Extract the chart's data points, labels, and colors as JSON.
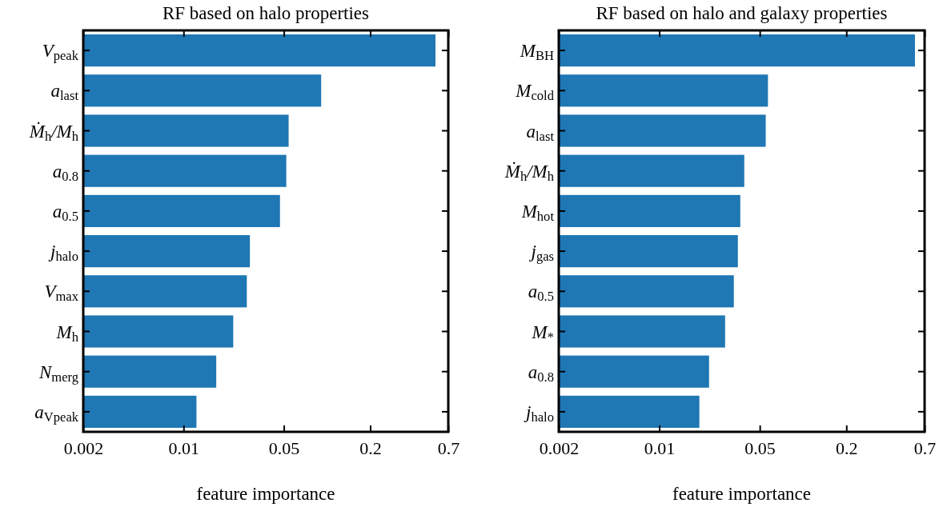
{
  "chart_data": [
    {
      "type": "bar",
      "orientation": "horizontal",
      "title": "RF based on halo properties",
      "xlabel": "feature importance",
      "log": "x",
      "xlim": [
        0.002,
        0.7
      ],
      "xticks": [
        0.002,
        0.01,
        0.05,
        0.2,
        0.7
      ],
      "categories": [
        "V$_{peak}$",
        "a$_{last}$",
        "Ṁ$_{h}$/M$_{h}$",
        "a$_{0.8}$",
        "a$_{0.5}$",
        "j$_{halo}$",
        "V$_{max}$",
        "M$_{h}$",
        "N$_{merg}$",
        "a$_{Vpeak}$"
      ],
      "values": [
        0.57,
        0.091,
        0.054,
        0.052,
        0.047,
        0.029,
        0.0276,
        0.0222,
        0.0169,
        0.0123
      ],
      "color": "#1f77b4"
    },
    {
      "type": "bar",
      "orientation": "horizontal",
      "title": "RF based on halo and galaxy properties",
      "xlabel": "feature importance",
      "log": "x",
      "xlim": [
        0.002,
        0.7
      ],
      "xticks": [
        0.002,
        0.01,
        0.05,
        0.2,
        0.7
      ],
      "categories": [
        "M$_{BH}$",
        "M$_{cold}$",
        "a$_{last}$",
        "Ṁ$_{h}$/M$_{h}$",
        "M$_{hot}$",
        "j$_{gas}$",
        "a$_{0.5}$",
        "M$_{*}$",
        "a$_{0.8}$",
        "j$_{halo}$"
      ],
      "values": [
        0.6,
        0.057,
        0.055,
        0.039,
        0.0366,
        0.0352,
        0.033,
        0.0287,
        0.0222,
        0.019
      ],
      "color": "#1f77b4"
    }
  ]
}
